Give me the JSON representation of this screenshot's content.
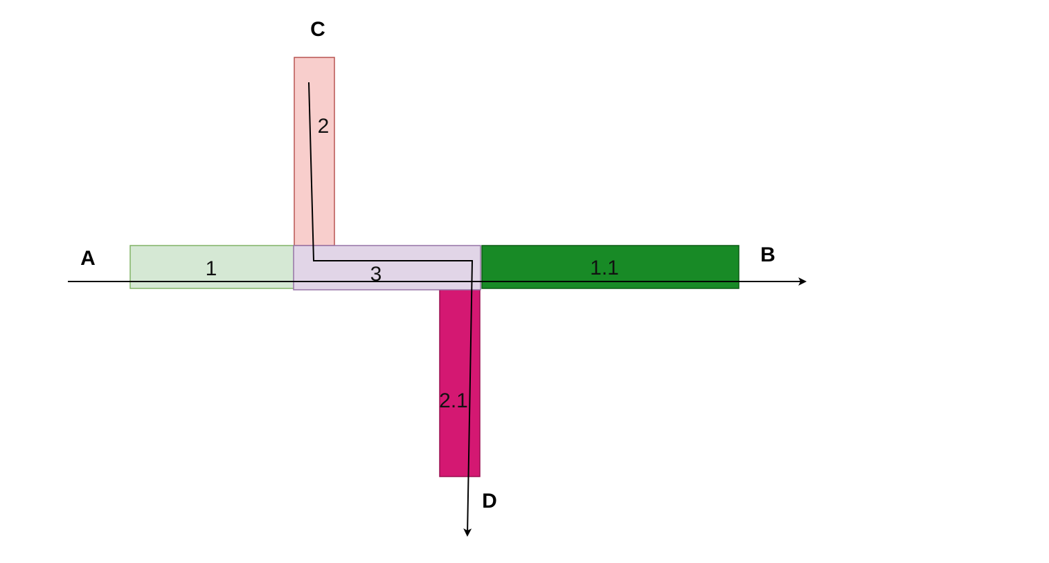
{
  "diagram": {
    "regions": [
      {
        "id": "1",
        "label": "1",
        "fill": "#d5e8d4",
        "stroke": "#82b366"
      },
      {
        "id": "1.1",
        "label": "1.1",
        "fill": "#188a26",
        "stroke": "#0a5a14"
      },
      {
        "id": "2",
        "label": "2",
        "fill": "#f8cecc",
        "stroke": "#b85450"
      },
      {
        "id": "2.1",
        "label": "2.1",
        "fill": "#d41872",
        "stroke": "#9a0e50"
      },
      {
        "id": "3",
        "label": "3",
        "fill": "#e1d5e7",
        "stroke": "#9673a6"
      }
    ],
    "endpoints": {
      "a": "A",
      "b": "B",
      "c": "C",
      "d": "D"
    },
    "paths": [
      {
        "id": "a-to-b",
        "from": "A",
        "to": "B"
      },
      {
        "id": "c-to-d",
        "from": "C",
        "to": "D"
      }
    ]
  }
}
